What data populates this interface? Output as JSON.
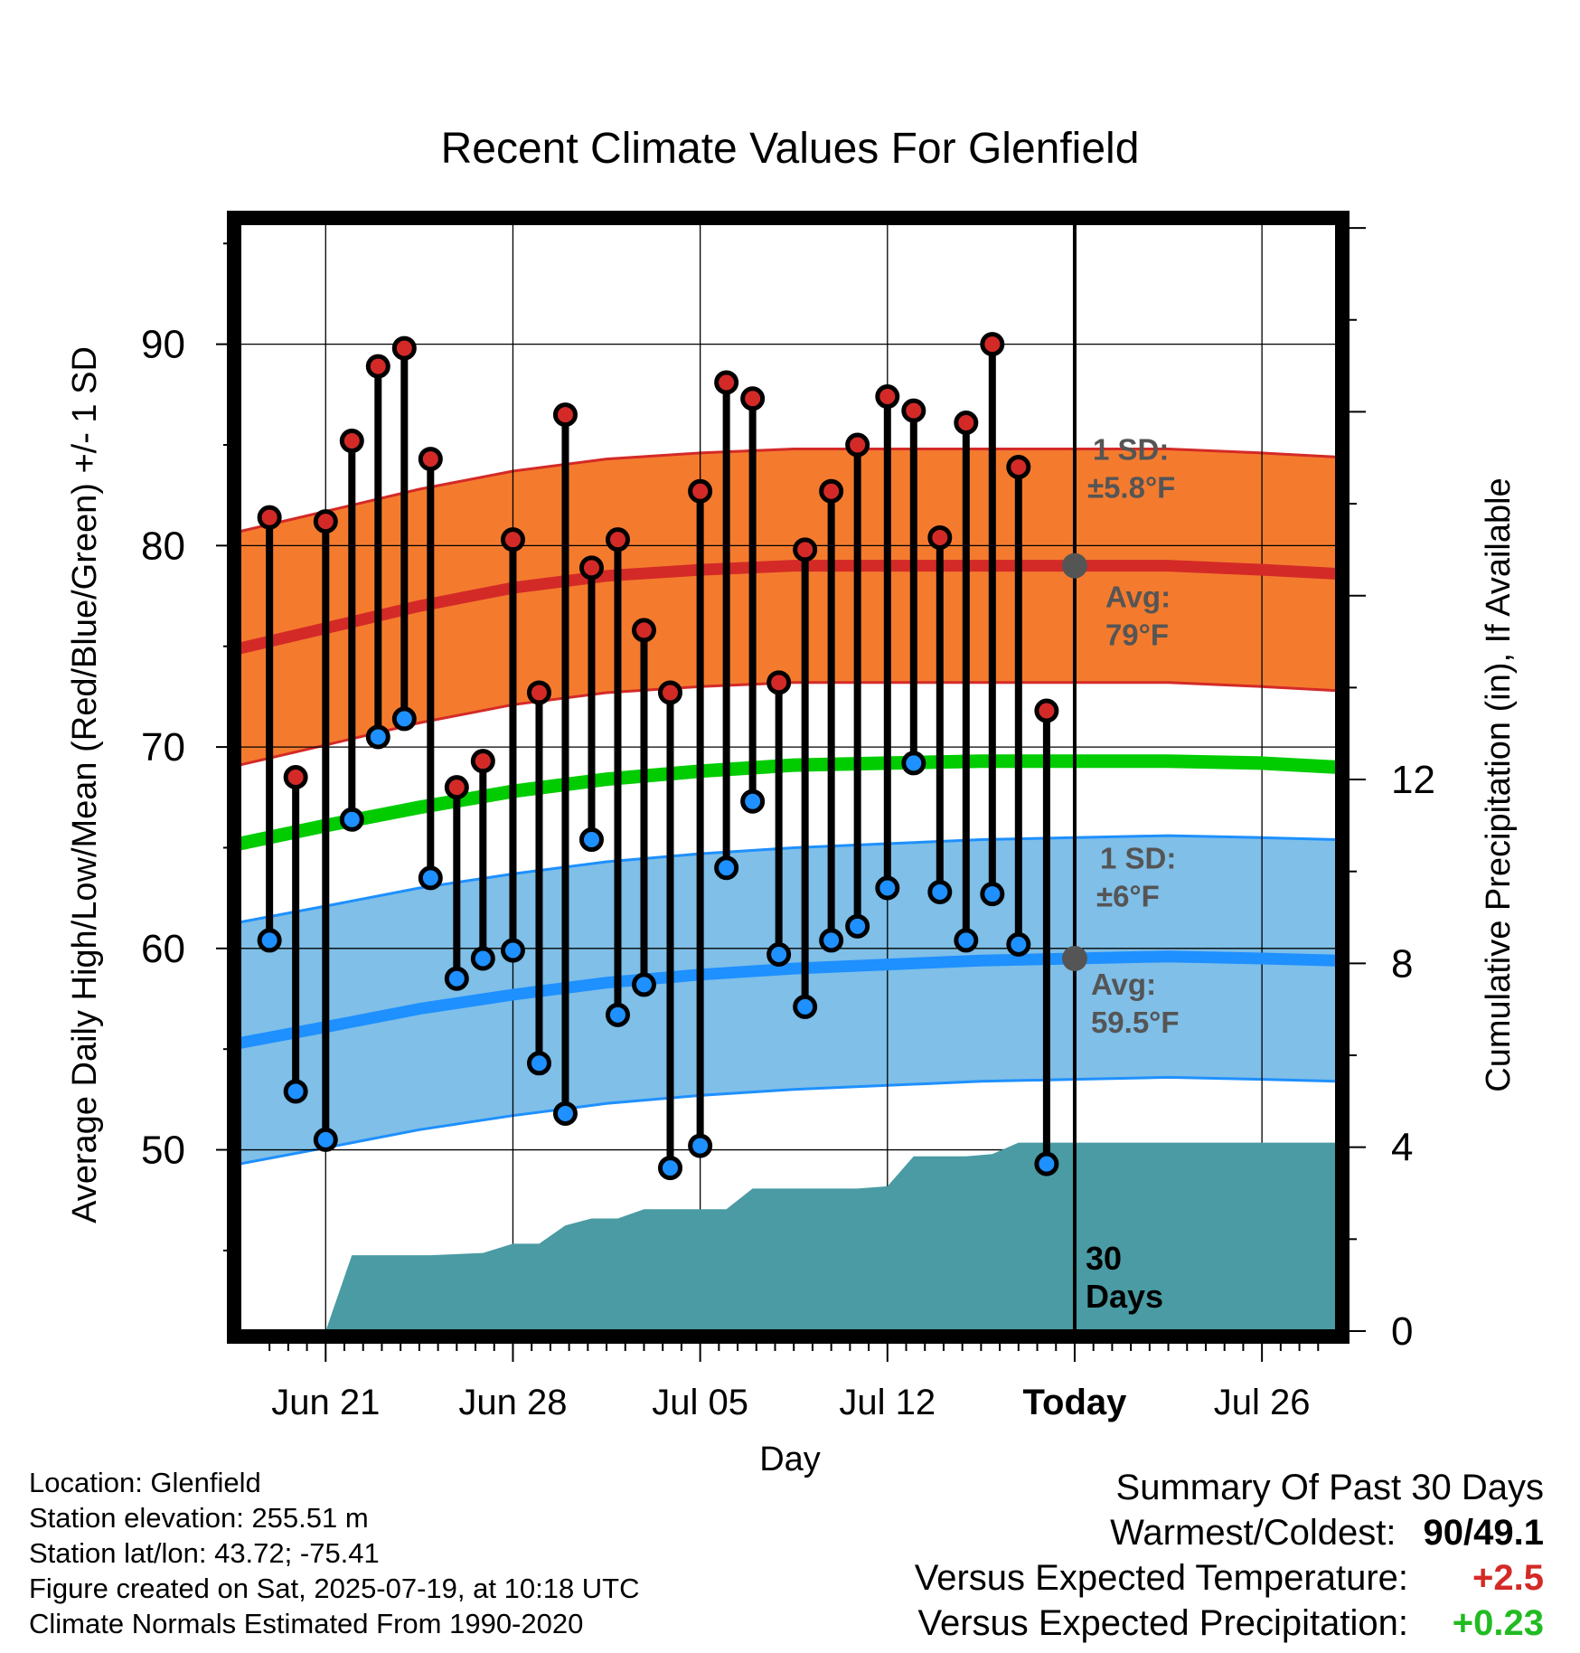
{
  "chart_data": {
    "type": "line",
    "title": "Recent Climate Values For Glenfield",
    "xlabel": "Day",
    "ylabel": "Average Daily High/Low/Mean (Red/Blue/Green) +/- 1 SD",
    "y2label": "Cumulative Precipitation (in), If Available",
    "ylim": [
      41,
      96
    ],
    "y2lim": [
      0,
      24.1
    ],
    "xlim": [
      -4.6,
      54
    ],
    "y_ticks": [
      50,
      60,
      70,
      80,
      90
    ],
    "y2_ticks": [
      0,
      4,
      8,
      12
    ],
    "x_ticks": [
      {
        "day": 0,
        "label": "Jun 21"
      },
      {
        "day": 10,
        "label": "Jun 28"
      },
      {
        "day": 20,
        "label": "Jul 05"
      },
      {
        "day": 30,
        "label": "Jul 12"
      },
      {
        "day": 40,
        "label": "Today"
      },
      {
        "day": 50,
        "label": "Jul 26"
      }
    ],
    "today_day": 40,
    "days": [
      -3,
      -1.6,
      0,
      1.4,
      2.8,
      4.2,
      5.6,
      7,
      8.4,
      10,
      11.4,
      12.8,
      14.2,
      15.6,
      17,
      18.4,
      20,
      21.4,
      22.8,
      24.2,
      25.6,
      27,
      28.4,
      30,
      31.4,
      32.8,
      34.2,
      35.6,
      37,
      38.5
    ],
    "highs": [
      81.4,
      68.5,
      81.2,
      85.2,
      88.9,
      89.8,
      84.3,
      68,
      69.3,
      80.3,
      72.7,
      86.5,
      78.9,
      80.3,
      75.8,
      72.7,
      82.7,
      88.1,
      87.3,
      73.2,
      79.8,
      82.7,
      85,
      87.4,
      86.7,
      80.4,
      86.1,
      90,
      83.9,
      71.8
    ],
    "lows": [
      60.4,
      52.9,
      50.5,
      66.4,
      70.5,
      71.4,
      63.5,
      58.5,
      59.5,
      59.9,
      54.3,
      51.8,
      65.4,
      56.7,
      58.2,
      49.1,
      50.2,
      64,
      67.3,
      59.7,
      57.1,
      60.4,
      61.1,
      63,
      69.2,
      62.8,
      60.4,
      62.7,
      60.2,
      49.3
    ],
    "normal_days": [
      -4.6,
      0,
      5,
      10,
      15,
      20,
      25,
      30,
      35,
      40,
      45,
      50,
      54
    ],
    "normal_high": [
      74.9,
      75.9,
      77,
      77.9,
      78.5,
      78.8,
      79,
      79,
      79,
      79,
      79,
      78.8,
      78.6
    ],
    "normal_low": [
      55.3,
      56.1,
      57,
      57.7,
      58.3,
      58.7,
      59,
      59.2,
      59.4,
      59.5,
      59.6,
      59.5,
      59.4
    ],
    "normal_mean": [
      65.2,
      66.1,
      67,
      67.8,
      68.4,
      68.8,
      69.1,
      69.2,
      69.3,
      69.3,
      69.3,
      69.2,
      69
    ],
    "high_sd": 5.8,
    "low_sd": 6,
    "precip_days": [
      0,
      1.4,
      5.6,
      8.4,
      10,
      11.4,
      12.8,
      14.2,
      15.6,
      17,
      18.4,
      20,
      21.4,
      22.8,
      24.2,
      25.6,
      27,
      28.4,
      30,
      31.4,
      32.8,
      34.2,
      35.6,
      37,
      38.5,
      40,
      54
    ],
    "precip": [
      0,
      1.65,
      1.65,
      1.7,
      1.9,
      1.9,
      2.3,
      2.45,
      2.45,
      2.65,
      2.65,
      2.65,
      2.65,
      3.1,
      3.1,
      3.1,
      3.1,
      3.1,
      3.15,
      3.8,
      3.8,
      3.8,
      3.85,
      4.1,
      4.1,
      4.1,
      4.1
    ],
    "colors": {
      "high_band": "#f47b2e",
      "high_line": "#d42a27",
      "low_band": "#7fbfe8",
      "low_line": "#1e90ff",
      "mean_line": "#00cc00",
      "precip": "#4a9ba3",
      "high_dot": "#d42a27",
      "low_dot": "#1e90ff",
      "annotation": "#555555"
    }
  },
  "annotations": {
    "high_sd_label": "1 SD:",
    "high_sd_value": "±5.8°F",
    "high_avg_label": "Avg:",
    "high_avg_value": "79°F",
    "low_sd_label": "1 SD:",
    "low_sd_value": "±6°F",
    "low_avg_label": "Avg:",
    "low_avg_value": "59.5°F",
    "days_number": "30",
    "days_word": "Days"
  },
  "info": {
    "location": "Location: Glenfield",
    "elevation": "Station elevation: 255.51 m",
    "latlon": "Station lat/lon: 43.72; -75.41",
    "created": "Figure created on Sat, 2025-07-19, at 10:18 UTC",
    "normals": "Climate Normals Estimated From 1990-2020"
  },
  "summary": {
    "title": "Summary Of Past 30 Days",
    "warmest_label": "Warmest/Coldest:",
    "warmest_value": "90/49.1",
    "temp_label": "Versus Expected Temperature:",
    "temp_value": "+2.5",
    "temp_color": "#d42a27",
    "precip_label": "Versus Expected Precipitation:",
    "precip_value": "+0.23",
    "precip_color": "#22bb22"
  }
}
